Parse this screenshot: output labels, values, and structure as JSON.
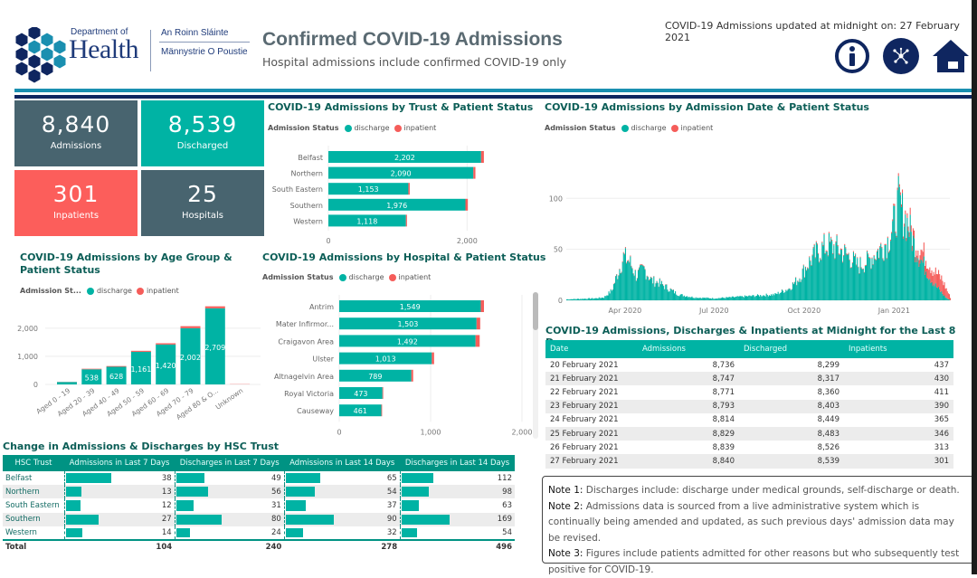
{
  "header": {
    "logo": {
      "line1": "Department of",
      "line2": "Health",
      "irish": "An Roinn Sláinte",
      "ulster_scots": "Männystrie O Poustie"
    },
    "title": "Confirmed COVID-19 Admissions",
    "subtitle": "Hospital admissions include confirmed COVID-19 only",
    "updated": "COVID-19 Admissions updated at midnight on: 27 February 2021",
    "icons": [
      "info-icon",
      "network-icon",
      "home-icon"
    ]
  },
  "colors": {
    "discharge": "#00b3a4",
    "inpatient": "#f55d5a",
    "navy": "#0f2660",
    "slate": "#48646f",
    "teal": "#00b3a4",
    "red": "#fc5e5b"
  },
  "cards": [
    {
      "value": "8,840",
      "label": "Admissions",
      "color": "#48646f"
    },
    {
      "value": "8,539",
      "label": "Discharged",
      "color": "#00b3a4"
    },
    {
      "value": "301",
      "label": "Inpatients",
      "color": "#fc5e5b"
    },
    {
      "value": "25",
      "label": "Hospitals",
      "color": "#48646f"
    }
  ],
  "legend": {
    "title": "Admission Status",
    "title_short": "Admission St...",
    "discharge": "discharge",
    "inpatient": "inpatient"
  },
  "chart_data": [
    {
      "id": "trust",
      "type": "bar",
      "orientation": "horizontal",
      "stacked": true,
      "title": "COVID-19 Admissions by Trust & Patient Status",
      "categories": [
        "Belfast",
        "Northern",
        "South Eastern",
        "Southern",
        "Western"
      ],
      "series": [
        {
          "name": "discharge",
          "values": [
            2202,
            2090,
            1153,
            1976,
            1118
          ]
        },
        {
          "name": "inpatient",
          "values": [
            40,
            30,
            20,
            35,
            15
          ]
        }
      ],
      "xticks": [
        "0",
        "2,000"
      ],
      "xlim": [
        0,
        2400
      ],
      "legend": "top-left"
    },
    {
      "id": "age",
      "type": "bar",
      "orientation": "vertical",
      "stacked": true,
      "title": "COVID-19 Admissions by Age Group & Patient Status",
      "categories": [
        "Aged 0 - 19",
        "Aged 20 - 39",
        "Aged 40 - 49",
        "Aged 50 - 59",
        "Aged 60 - 69",
        "Aged 70 - 79",
        "Aged 80 & O...",
        "Unknown"
      ],
      "series": [
        {
          "name": "discharge",
          "values": [
            85,
            538,
            628,
            1161,
            1420,
            2002,
            2709,
            0
          ],
          "labels": [
            "",
            "538",
            "628",
            "1,161",
            "1,420",
            "2,002",
            "2,709",
            ""
          ]
        },
        {
          "name": "inpatient",
          "values": [
            5,
            20,
            25,
            35,
            45,
            70,
            70,
            8
          ]
        }
      ],
      "yticks": [
        "0",
        "1,000",
        "2,000"
      ],
      "ylim": [
        0,
        2800
      ],
      "grid": true,
      "legend": "top-left"
    },
    {
      "id": "hospital",
      "type": "bar",
      "orientation": "horizontal",
      "stacked": true,
      "title": "COVID-19 Admissions by Hospital & Patient Status",
      "categories": [
        "Antrim",
        "Mater Infirmor...",
        "Craigavon Area",
        "Ulster",
        "Altnagelvin Area",
        "Royal Victoria",
        "Causeway"
      ],
      "series": [
        {
          "name": "discharge",
          "values": [
            1549,
            1503,
            1492,
            1013,
            789,
            473,
            461
          ],
          "labels": [
            "1,549",
            "1,503",
            "1,492",
            "1,013",
            "789",
            "473",
            "461"
          ]
        },
        {
          "name": "inpatient",
          "values": [
            35,
            40,
            45,
            25,
            20,
            8,
            8
          ]
        }
      ],
      "xticks": [
        "0",
        "1,000",
        "2,000"
      ],
      "xlim": [
        0,
        2000
      ],
      "legend": "top-left"
    },
    {
      "id": "timeline",
      "type": "bar",
      "stacked": true,
      "title": "COVID-19 Admissions by Admission Date & Patient Status",
      "x_range": [
        "2020-02-01",
        "2021-02-27"
      ],
      "xticks": [
        "Apr 2020",
        "Jul 2020",
        "Oct 2020",
        "Jan 2021"
      ],
      "yticks": [
        "0",
        "50",
        "100"
      ],
      "ylim": [
        0,
        110
      ],
      "grid": true,
      "daily_totals_approx": {
        "dates": [
          "2020-02-01",
          "2020-03-01",
          "2020-03-10",
          "2020-03-18",
          "2020-03-25",
          "2020-03-30",
          "2020-04-05",
          "2020-04-12",
          "2020-04-20",
          "2020-04-28",
          "2020-05-05",
          "2020-05-15",
          "2020-05-25",
          "2020-06-10",
          "2020-07-01",
          "2020-08-01",
          "2020-09-01",
          "2020-09-15",
          "2020-09-25",
          "2020-10-05",
          "2020-10-15",
          "2020-10-25",
          "2020-11-05",
          "2020-11-15",
          "2020-11-25",
          "2020-12-05",
          "2020-12-15",
          "2020-12-25",
          "2021-01-01",
          "2021-01-05",
          "2021-01-10",
          "2021-01-15",
          "2021-01-22",
          "2021-02-01",
          "2021-02-10",
          "2021-02-18",
          "2021-02-27"
        ],
        "values": [
          1,
          2,
          3,
          10,
          30,
          44,
          40,
          25,
          32,
          20,
          18,
          12,
          6,
          3,
          2,
          4,
          6,
          12,
          22,
          38,
          50,
          56,
          52,
          45,
          35,
          40,
          50,
          60,
          80,
          100,
          88,
          80,
          60,
          45,
          30,
          22,
          3
        ]
      },
      "inpatient_share_note": "inpatient segments grow toward Feb 2021",
      "legend": "top-left"
    }
  ],
  "last8": {
    "title": "COVID-19 Admissions, Discharges & Inpatients at Midnight for the Last 8 Days",
    "columns": [
      "Date",
      "Admissions",
      "Discharged",
      "Inpatients"
    ],
    "rows": [
      [
        "20 February 2021",
        "8,736",
        "8,299",
        "437"
      ],
      [
        "21 February 2021",
        "8,747",
        "8,317",
        "430"
      ],
      [
        "22 February 2021",
        "8,771",
        "8,360",
        "411"
      ],
      [
        "23 February 2021",
        "8,793",
        "8,403",
        "390"
      ],
      [
        "24 February 2021",
        "8,814",
        "8,449",
        "365"
      ],
      [
        "25 February 2021",
        "8,829",
        "8,483",
        "346"
      ],
      [
        "26 February 2021",
        "8,839",
        "8,526",
        "313"
      ],
      [
        "27 February 2021",
        "8,840",
        "8,539",
        "301"
      ]
    ]
  },
  "hsc": {
    "title": "Change in Admissions & Discharges by HSC Trust",
    "columns": [
      "HSC Trust",
      "Admissions in Last 7 Days",
      "Discharges in Last 7 Days",
      "Admissions in Last 14 Days",
      "Discharges in Last 14 Days"
    ],
    "rows": [
      [
        "Belfast",
        38,
        49,
        65,
        112
      ],
      [
        "Northern",
        13,
        56,
        54,
        98
      ],
      [
        "South Eastern",
        12,
        31,
        37,
        63
      ],
      [
        "Southern",
        27,
        80,
        90,
        169
      ],
      [
        "Western",
        14,
        24,
        32,
        54
      ]
    ],
    "total": [
      "Total",
      104,
      240,
      278,
      496
    ]
  },
  "notes": [
    {
      "label": "Note 1:",
      "text": " Discharges include: discharge under medical grounds, self-discharge or death."
    },
    {
      "label": "Note 2:",
      "text": " Admissions data is sourced from a live administrative system which is continually being amended and updated, as such previous days' admission data may be revised."
    },
    {
      "label": "Note 3:",
      "text": " Figures include patients admitted for other reasons but who subsequently test positive for COVID-19."
    }
  ]
}
